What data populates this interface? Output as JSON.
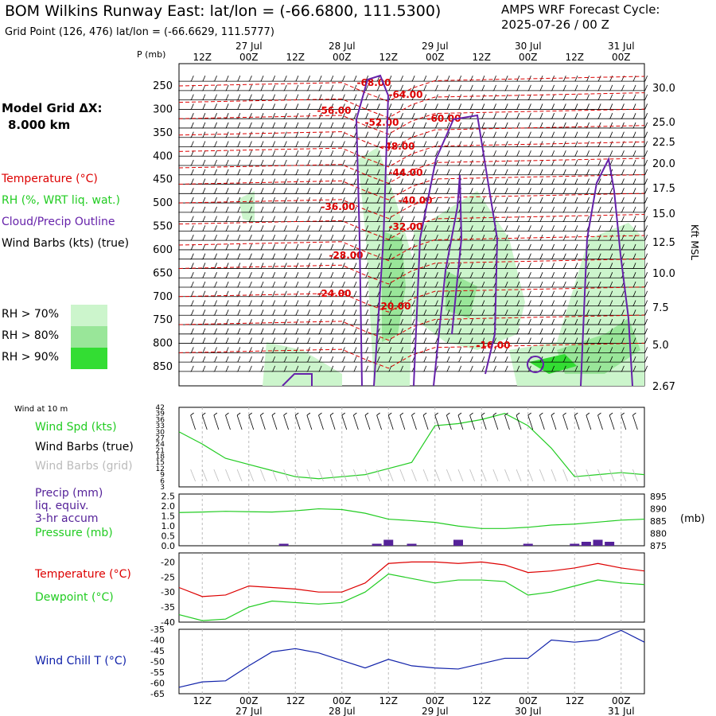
{
  "header": {
    "title": "BOM Wilkins Runway East:  lat/lon = (-66.6800, 111.5300)",
    "subtitle": "Grid Point (126, 476) lat/lon = (-66.6629, 111.5777)",
    "cycle_line1": "AMPS WRF Forecast Cycle:",
    "cycle_line2": "2025-07-26 / 00  Z"
  },
  "sidebar": {
    "grid_label": "Model Grid ΔX:",
    "grid_value": "8.000 km",
    "legend_temp": "Temperature (°C)",
    "legend_rh": "RH (%, WRT liq. wat.)",
    "legend_cloud": "Cloud/Precip Outline",
    "legend_wind": "Wind Barbs (kts) (true)",
    "rh70": "RH > 70%",
    "rh80": "RH > 80%",
    "rh90": "RH > 90%",
    "wind10": "Wind at 10 m",
    "wind_spd": "Wind Spd (kts)",
    "wind_barbs_true": "Wind Barbs (true)",
    "wind_barbs_grid": "Wind Barbs (grid)",
    "precip1": "Precip (mm)",
    "precip2": "liq. equiv.",
    "precip3": "3-hr accum",
    "pressure": "Pressure (mb)",
    "temp": "Temperature (°C)",
    "dewpoint": "Dewpoint (°C)",
    "windchill": "Wind Chill T (°C)",
    "kft_label": "Kft MSL",
    "mb_label": "(mb)",
    "p_label": "P (mb)"
  },
  "colors": {
    "temperature": "#dd0000",
    "rh_green": "#22cc22",
    "cloud_purple": "#6622aa",
    "pressure_green": "#22cc22",
    "windchill_blue": "#1122aa",
    "rh70": "#ccf5cc",
    "rh80": "#99e699",
    "rh90": "#33dd33",
    "precip_bar": "#552299",
    "gridline": "#bbbbbb"
  },
  "time_axis": {
    "ticks": [
      "12Z",
      "00Z",
      "12Z",
      "00Z",
      "12Z",
      "00Z",
      "12Z",
      "00Z",
      "12Z",
      "00Z"
    ],
    "dates_top": [
      {
        "label": "27 Jul",
        "tick": 1
      },
      {
        "label": "28 Jul",
        "tick": 3
      },
      {
        "label": "29 Jul",
        "tick": 5
      },
      {
        "label": "30 Jul",
        "tick": 7
      },
      {
        "label": "31 Jul",
        "tick": 9
      }
    ],
    "dates_bottom": [
      {
        "label": "27 Jul",
        "tick": 1
      },
      {
        "label": "28 Jul",
        "tick": 3
      },
      {
        "label": "29 Jul",
        "tick": 5
      },
      {
        "label": "30 Jul",
        "tick": 7
      },
      {
        "label": "31 Jul",
        "tick": 9
      }
    ]
  },
  "chart_data": [
    {
      "type": "heatmap",
      "name": "cross-section",
      "y_pressure_ticks": [
        250,
        300,
        350,
        400,
        450,
        500,
        550,
        600,
        650,
        700,
        750,
        800,
        850
      ],
      "y_kft_ticks": [
        "30.0",
        "25.0",
        "22.5",
        "20.0",
        "17.5",
        "15.0",
        "12.5",
        "10.0",
        "7.5",
        "5.0",
        "2.67"
      ],
      "temperature_contour_labels": [
        "-68.00",
        "-64.00",
        "-60.00",
        "-56.00",
        "-52.00",
        "-48.00",
        "-44.00",
        "-40.00",
        "-36.00",
        "-32.00",
        "-28.00",
        "-24.00",
        "-20.00",
        "-16.00"
      ]
    },
    {
      "type": "line",
      "name": "wind-speed",
      "ylabel": "Wind Spd (kts)",
      "yticks": [
        3,
        6,
        9,
        12,
        15,
        18,
        21,
        24,
        27,
        30,
        33,
        36,
        39,
        42
      ],
      "x_hours": [
        0,
        6,
        12,
        18,
        24,
        30,
        36,
        42,
        48,
        54,
        60,
        66,
        72,
        78,
        84,
        90,
        96,
        102,
        108,
        114,
        120
      ],
      "values": [
        30,
        24,
        17,
        14,
        11,
        8,
        7,
        8,
        9,
        12,
        15,
        33,
        34,
        36,
        39,
        33,
        22,
        8,
        9,
        10,
        9
      ]
    },
    {
      "type": "line",
      "name": "pressure-precip",
      "y_left_ticks": [
        "0.0",
        "0.5",
        "1.0",
        "1.5",
        "2.0",
        "2.5"
      ],
      "y_right_ticks": [
        875,
        880,
        885,
        890,
        895
      ],
      "pressure_x_hours": [
        0,
        6,
        12,
        18,
        24,
        30,
        36,
        42,
        48,
        54,
        60,
        66,
        72,
        78,
        84,
        90,
        96,
        102,
        108,
        114,
        120
      ],
      "pressure_mb": [
        888.5,
        888.7,
        889,
        888.8,
        888.7,
        889.2,
        890,
        889.7,
        888.2,
        885.8,
        885.2,
        884.5,
        883,
        882,
        882,
        882.5,
        883.4,
        883.8,
        884.6,
        885.4,
        885.8
      ],
      "precip_x_hours": [
        27,
        51,
        54,
        60,
        72,
        90,
        102,
        105,
        108,
        111
      ],
      "precip_mm": [
        0.1,
        0.1,
        0.3,
        0.1,
        0.3,
        0.1,
        0.1,
        0.2,
        0.3,
        0.2
      ]
    },
    {
      "type": "line",
      "name": "temp-dewpoint",
      "yticks": [
        -40,
        -35,
        -30,
        -25,
        -20
      ],
      "x_hours": [
        0,
        6,
        12,
        18,
        24,
        30,
        36,
        42,
        48,
        54,
        60,
        66,
        72,
        78,
        84,
        90,
        96,
        102,
        108,
        114,
        120
      ],
      "temperature": [
        -28.5,
        -31.5,
        -31,
        -28,
        -28.5,
        -29,
        -30,
        -30,
        -27,
        -20.5,
        -20,
        -20,
        -20.5,
        -20,
        -21,
        -23.5,
        -23,
        -22,
        -20.5,
        -22,
        -23
      ],
      "dewpoint": [
        -37.5,
        -39.5,
        -39,
        -35,
        -33,
        -33.5,
        -34,
        -33.5,
        -30,
        -24,
        -25.5,
        -27,
        -26,
        -26,
        -26.5,
        -31,
        -30,
        -28,
        -26,
        -27,
        -27.5
      ]
    },
    {
      "type": "line",
      "name": "wind-chill",
      "ylabel": "Wind Chill T (°C)",
      "yticks": [
        -65,
        -60,
        -55,
        -50,
        -45,
        -40,
        -35
      ],
      "x_hours": [
        0,
        6,
        12,
        18,
        24,
        30,
        36,
        42,
        48,
        54,
        60,
        66,
        72,
        78,
        84,
        90,
        96,
        102,
        108,
        114,
        120
      ],
      "values": [
        -62,
        -59.5,
        -59,
        -52,
        -45.5,
        -44,
        -46,
        -49.5,
        -53,
        -49,
        -52,
        -53,
        -53.5,
        -51,
        -48.5,
        -48.5,
        -40,
        -41,
        -40,
        -35.5,
        -41
      ]
    }
  ]
}
